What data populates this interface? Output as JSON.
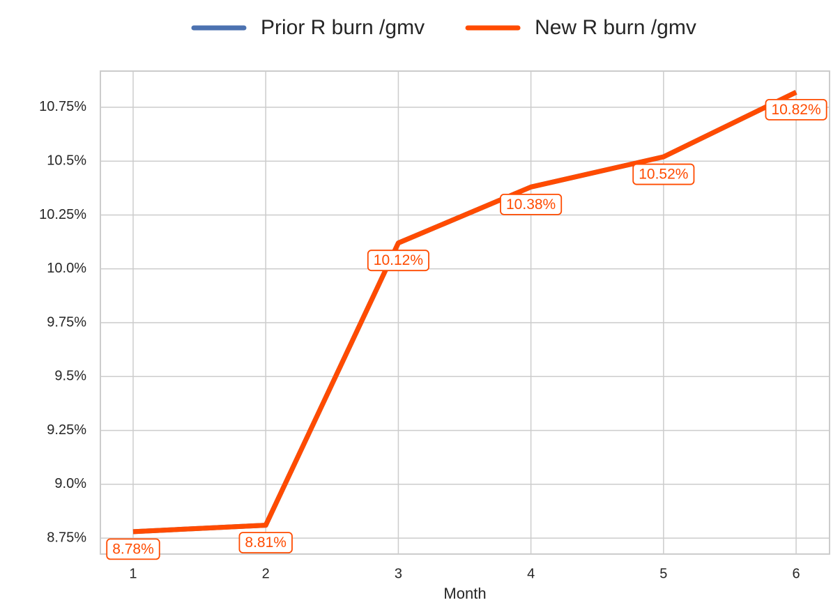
{
  "chart_data": {
    "type": "line",
    "x_label": "Month",
    "x": [
      1,
      2,
      3,
      4,
      5,
      6
    ],
    "series": [
      {
        "name": "Prior R burn /gmv",
        "color": "#4c72b0",
        "values": [
          8.78,
          8.81,
          10.12,
          10.38,
          10.52,
          10.82
        ]
      },
      {
        "name": "New R burn /gmv",
        "color": "#ff4b00",
        "values": [
          8.78,
          8.81,
          10.12,
          10.38,
          10.52,
          10.82
        ],
        "value_labels": [
          "8.78%",
          "8.81%",
          "10.12%",
          "10.38%",
          "10.52%",
          "10.82%"
        ]
      }
    ],
    "xlim": [
      0.753,
      6.252
    ],
    "xticks": [
      1,
      2,
      3,
      4,
      5,
      6
    ],
    "ylim": [
      8.676,
      10.918
    ],
    "yticks": [
      {
        "value": 8.75,
        "label": "8.75%"
      },
      {
        "value": 9.0,
        "label": "9.0%"
      },
      {
        "value": 9.25,
        "label": "9.25%"
      },
      {
        "value": 9.5,
        "label": "9.5%"
      },
      {
        "value": 9.75,
        "label": "9.75%"
      },
      {
        "value": 10.0,
        "label": "10.0%"
      },
      {
        "value": 10.25,
        "label": "10.25%"
      },
      {
        "value": 10.5,
        "label": "10.5%"
      },
      {
        "value": 10.75,
        "label": "10.75%"
      }
    ],
    "grid": true,
    "legend": "top"
  }
}
